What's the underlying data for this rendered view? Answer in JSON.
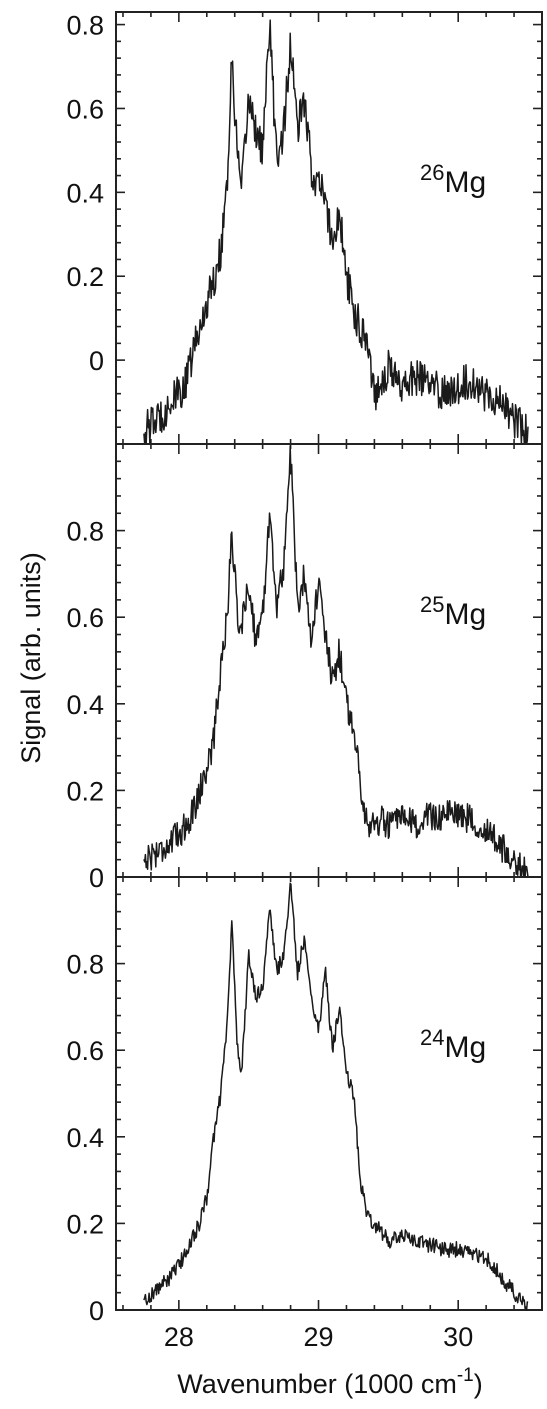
{
  "figure": {
    "xlabel": "Wavenumber (1000 cm",
    "xlabel_sup": "-1",
    "xlabel_end": ")",
    "ylabel": "Signal (arb. units)"
  },
  "chart_data": [
    {
      "type": "line",
      "isotope_mass": "26",
      "isotope_symbol": "Mg",
      "xlim": [
        27.55,
        30.6
      ],
      "ylim": [
        -0.2,
        0.83
      ],
      "x_ticks": [
        28,
        29,
        30
      ],
      "y_ticks": [
        0,
        0.2,
        0.4,
        0.6,
        0.8
      ],
      "y_tick_labels": [
        "0",
        "0.2",
        "0.4",
        "0.6",
        "0.8"
      ],
      "show_x_tick_labels": false,
      "line_color": "#1a1a1a",
      "x": [
        27.75,
        27.85,
        27.95,
        28.05,
        28.1,
        28.15,
        28.2,
        28.25,
        28.3,
        28.35,
        28.38,
        28.42,
        28.45,
        28.5,
        28.55,
        28.6,
        28.65,
        28.7,
        28.75,
        28.8,
        28.85,
        28.9,
        28.95,
        29.0,
        29.05,
        29.1,
        29.15,
        29.2,
        29.25,
        29.3,
        29.35,
        29.4,
        29.45,
        29.5,
        29.6,
        29.7,
        29.8,
        29.9,
        30.0,
        30.1,
        30.2,
        30.3,
        30.4,
        30.5
      ],
      "y": [
        -0.17,
        -0.14,
        -0.1,
        -0.06,
        0.02,
        0.07,
        0.14,
        0.19,
        0.26,
        0.45,
        0.72,
        0.48,
        0.4,
        0.63,
        0.55,
        0.5,
        0.8,
        0.48,
        0.55,
        0.75,
        0.55,
        0.62,
        0.45,
        0.42,
        0.38,
        0.28,
        0.35,
        0.2,
        0.12,
        0.08,
        0.05,
        -0.08,
        -0.05,
        -0.02,
        -0.06,
        -0.04,
        -0.06,
        -0.08,
        -0.06,
        -0.05,
        -0.08,
        -0.1,
        -0.14,
        -0.18
      ],
      "noise": 0.045
    },
    {
      "type": "line",
      "isotope_mass": "25",
      "isotope_symbol": "Mg",
      "xlim": [
        27.55,
        30.6
      ],
      "ylim": [
        0,
        1.0
      ],
      "x_ticks": [
        28,
        29,
        30
      ],
      "y_ticks": [
        0,
        0.2,
        0.4,
        0.6,
        0.8
      ],
      "y_tick_labels": [
        "0",
        "0.2",
        "0.4",
        "0.6",
        "0.8"
      ],
      "show_x_tick_labels": false,
      "line_color": "#1a1a1a",
      "x": [
        27.75,
        27.85,
        27.95,
        28.05,
        28.1,
        28.15,
        28.2,
        28.25,
        28.3,
        28.35,
        28.38,
        28.42,
        28.45,
        28.5,
        28.55,
        28.6,
        28.65,
        28.7,
        28.75,
        28.8,
        28.85,
        28.9,
        28.95,
        29.0,
        29.05,
        29.1,
        29.15,
        29.2,
        29.25,
        29.3,
        29.35,
        29.4,
        29.45,
        29.5,
        29.6,
        29.7,
        29.8,
        29.9,
        30.0,
        30.1,
        30.2,
        30.3,
        30.4,
        30.5
      ],
      "y": [
        0.04,
        0.06,
        0.08,
        0.12,
        0.15,
        0.2,
        0.25,
        0.32,
        0.48,
        0.62,
        0.8,
        0.6,
        0.58,
        0.68,
        0.55,
        0.6,
        0.85,
        0.62,
        0.72,
        0.98,
        0.62,
        0.7,
        0.55,
        0.68,
        0.55,
        0.45,
        0.52,
        0.4,
        0.35,
        0.22,
        0.12,
        0.12,
        0.13,
        0.12,
        0.13,
        0.12,
        0.14,
        0.14,
        0.15,
        0.13,
        0.11,
        0.07,
        0.04,
        0.0
      ],
      "noise": 0.035
    },
    {
      "type": "line",
      "isotope_mass": "24",
      "isotope_symbol": "Mg",
      "xlim": [
        27.55,
        30.6
      ],
      "ylim": [
        0,
        1.0
      ],
      "x_ticks": [
        28,
        29,
        30
      ],
      "x_tick_labels": [
        "28",
        "29",
        "30"
      ],
      "y_ticks": [
        0,
        0.2,
        0.4,
        0.6,
        0.8
      ],
      "y_tick_labels": [
        "0",
        "0.2",
        "0.4",
        "0.6",
        "0.8"
      ],
      "show_x_tick_labels": true,
      "line_color": "#1a1a1a",
      "x": [
        27.75,
        27.85,
        27.95,
        28.05,
        28.1,
        28.15,
        28.2,
        28.25,
        28.3,
        28.35,
        28.38,
        28.42,
        28.45,
        28.5,
        28.55,
        28.6,
        28.65,
        28.7,
        28.75,
        28.8,
        28.85,
        28.9,
        28.95,
        29.0,
        29.05,
        29.1,
        29.15,
        29.2,
        29.25,
        29.3,
        29.35,
        29.4,
        29.45,
        29.5,
        29.6,
        29.7,
        29.8,
        29.9,
        30.0,
        30.1,
        30.2,
        30.3,
        30.4,
        30.5
      ],
      "y": [
        0.02,
        0.05,
        0.08,
        0.13,
        0.17,
        0.2,
        0.26,
        0.4,
        0.5,
        0.68,
        0.9,
        0.6,
        0.55,
        0.82,
        0.72,
        0.75,
        0.92,
        0.78,
        0.82,
        0.98,
        0.78,
        0.86,
        0.72,
        0.65,
        0.78,
        0.6,
        0.7,
        0.55,
        0.5,
        0.3,
        0.22,
        0.2,
        0.18,
        0.16,
        0.17,
        0.16,
        0.15,
        0.14,
        0.14,
        0.13,
        0.12,
        0.08,
        0.04,
        0.0
      ],
      "noise": 0.018
    }
  ]
}
